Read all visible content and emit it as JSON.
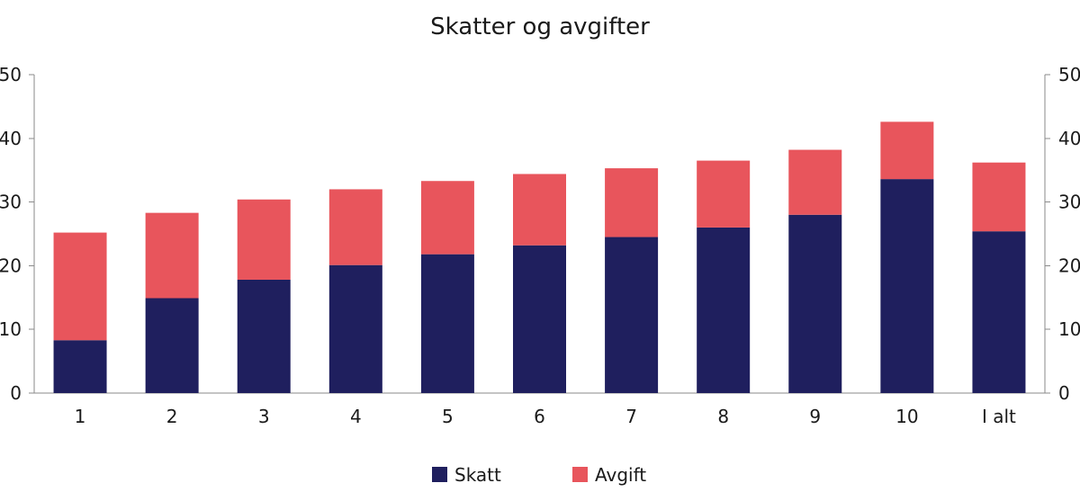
{
  "chart_data": {
    "type": "bar",
    "stacked": true,
    "title": "Skatter og avgifter",
    "xlabel": "",
    "ylabel": "",
    "ylim": [
      0,
      50
    ],
    "yticks": [
      0,
      10,
      20,
      30,
      40,
      50
    ],
    "categories": [
      "1",
      "2",
      "3",
      "4",
      "5",
      "6",
      "7",
      "8",
      "9",
      "10",
      "I alt"
    ],
    "series": [
      {
        "name": "Skatt",
        "color": "#1f1f5e",
        "values": [
          8.3,
          14.9,
          17.8,
          20.1,
          21.8,
          23.2,
          24.5,
          26.0,
          28.0,
          33.6,
          25.4
        ]
      },
      {
        "name": "Avgift",
        "color": "#e8555c",
        "values": [
          16.9,
          13.4,
          12.6,
          11.9,
          11.5,
          11.2,
          10.8,
          10.5,
          10.2,
          9.0,
          10.8
        ]
      }
    ],
    "grid": false,
    "legend_position": "bottom-center",
    "dual_y_axis": true
  }
}
